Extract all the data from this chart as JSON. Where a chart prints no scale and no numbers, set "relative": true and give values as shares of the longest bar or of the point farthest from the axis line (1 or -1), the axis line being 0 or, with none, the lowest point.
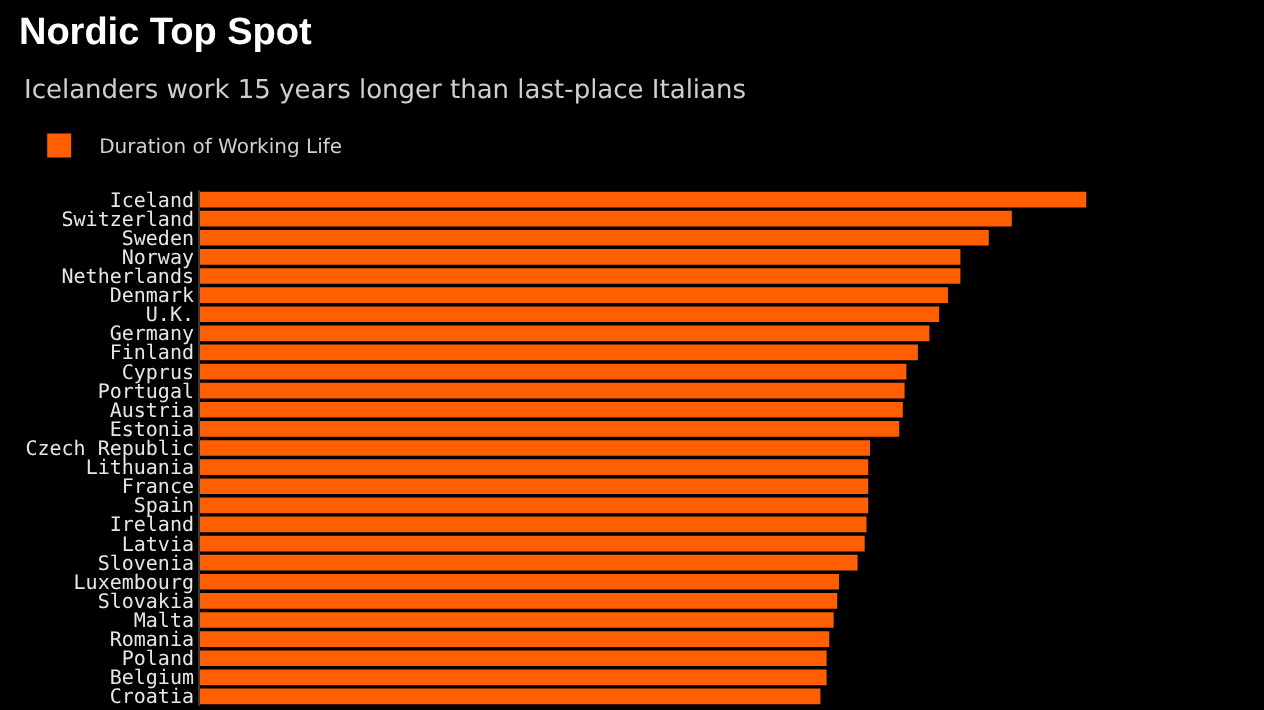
{
  "chart_data": {
    "type": "bar",
    "orientation": "horizontal",
    "relative": true,
    "title": "Nordic Top Spot",
    "subtitle": "Icelanders work 15 years longer than last-place Italians",
    "legend": "top left",
    "categories": [
      "Iceland",
      "Switzerland",
      "Sweden",
      "Norway",
      "Netherlands",
      "Denmark",
      "U.K.",
      "Germany",
      "Finland",
      "Cyprus",
      "Portugal",
      "Austria",
      "Estonia",
      "Czech Republic",
      "Lithuania",
      "France",
      "Spain",
      "Ireland",
      "Latvia",
      "Slovenia",
      "Luxembourg",
      "Slovakia",
      "Malta",
      "Romania",
      "Poland",
      "Belgium",
      "Croatia"
    ],
    "series": [
      {
        "name": "Duration of Working Life",
        "color": "#ff5f00",
        "values": [
          1,
          0.916,
          0.89,
          0.858,
          0.858,
          0.844,
          0.834,
          0.823,
          0.81,
          0.797,
          0.795,
          0.793,
          0.789,
          0.756,
          0.754,
          0.754,
          0.754,
          0.752,
          0.75,
          0.742,
          0.721,
          0.719,
          0.715,
          0.71,
          0.707,
          0.707,
          0.7
        ]
      }
    ]
  }
}
